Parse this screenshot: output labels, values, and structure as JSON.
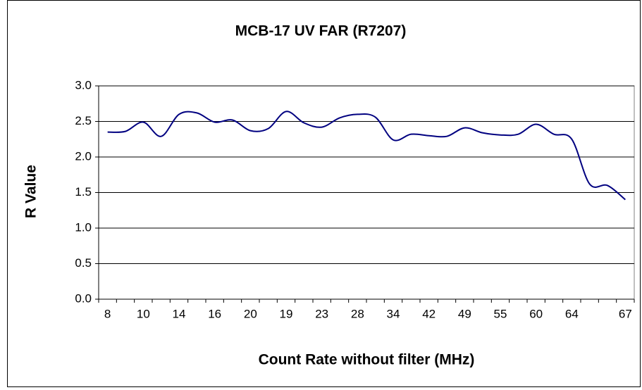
{
  "chart_data": {
    "type": "line",
    "title": "MCB-17 UV FAR (R7207)",
    "x_label": "Count Rate without filter (MHz)",
    "y_label": "R Value",
    "categories": [
      "8",
      null,
      "10",
      null,
      "14",
      null,
      "16",
      null,
      "20",
      null,
      "19",
      null,
      "23",
      null,
      "28",
      null,
      "34",
      null,
      "42",
      null,
      "49",
      null,
      "55",
      null,
      "60",
      null,
      "64",
      null,
      null,
      "67"
    ],
    "series": [
      {
        "name": "R Value",
        "color": "#000080",
        "values": [
          2.35,
          2.36,
          2.49,
          2.29,
          2.6,
          2.62,
          2.49,
          2.52,
          2.37,
          2.4,
          2.64,
          2.48,
          2.42,
          2.55,
          2.6,
          2.56,
          2.24,
          2.32,
          2.3,
          2.29,
          2.41,
          2.34,
          2.31,
          2.32,
          2.46,
          2.32,
          2.25,
          1.62,
          1.6,
          1.4
        ]
      }
    ],
    "ylim": [
      0,
      3
    ],
    "yticks": [
      {
        "value": 0,
        "label": "0.0"
      },
      {
        "value": 0.5,
        "label": "0.5"
      },
      {
        "value": 1,
        "label": "1.0"
      },
      {
        "value": 1.5,
        "label": "1.5"
      },
      {
        "value": 2,
        "label": "2.0"
      },
      {
        "value": 2.5,
        "label": "2.5"
      },
      {
        "value": 3,
        "label": "3.0"
      }
    ],
    "grid": true,
    "smooth": true
  }
}
